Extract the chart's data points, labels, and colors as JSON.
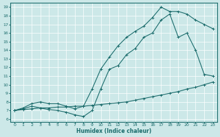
{
  "xlabel": "Humidex (Indice chaleur)",
  "xlim": [
    -0.5,
    23.5
  ],
  "ylim": [
    5.7,
    19.5
  ],
  "yticks": [
    6,
    7,
    8,
    9,
    10,
    11,
    12,
    13,
    14,
    15,
    16,
    17,
    18,
    19
  ],
  "xticks": [
    0,
    1,
    2,
    3,
    4,
    5,
    6,
    7,
    8,
    9,
    10,
    11,
    12,
    13,
    14,
    15,
    16,
    17,
    18,
    19,
    20,
    21,
    22,
    23
  ],
  "bg_color": "#cce8e8",
  "line_color": "#1a6b6b",
  "line1": {
    "x": [
      0,
      1,
      2,
      3,
      4,
      5,
      6,
      7,
      8,
      9,
      10,
      11,
      12,
      13,
      14,
      15,
      16,
      17,
      18,
      19,
      20,
      21,
      22,
      23
    ],
    "y": [
      7.0,
      7.1,
      7.2,
      7.3,
      7.3,
      7.4,
      7.4,
      7.5,
      7.5,
      7.6,
      7.7,
      7.8,
      7.9,
      8.0,
      8.2,
      8.4,
      8.6,
      8.8,
      9.0,
      9.2,
      9.5,
      9.7,
      10.0,
      10.3
    ]
  },
  "line2": {
    "x": [
      0,
      1,
      2,
      3,
      4,
      5,
      6,
      7,
      8,
      9,
      10,
      11,
      12,
      13,
      14,
      15,
      16,
      17,
      18,
      19,
      20,
      21,
      22,
      23
    ],
    "y": [
      7.0,
      7.2,
      7.5,
      7.3,
      7.1,
      7.0,
      6.8,
      6.5,
      6.3,
      7.0,
      9.5,
      11.8,
      12.2,
      13.5,
      14.2,
      15.5,
      16.0,
      17.5,
      18.2,
      15.5,
      16.0,
      14.0,
      11.2,
      11.0
    ]
  },
  "line3": {
    "x": [
      0,
      1,
      2,
      3,
      4,
      5,
      6,
      7,
      8,
      9,
      10,
      11,
      12,
      13,
      14,
      15,
      16,
      17,
      18,
      19,
      20,
      21,
      22,
      23
    ],
    "y": [
      7.0,
      7.3,
      7.8,
      8.0,
      7.8,
      7.8,
      7.5,
      7.2,
      7.5,
      9.5,
      11.8,
      13.2,
      14.5,
      15.5,
      16.2,
      16.8,
      17.8,
      19.0,
      18.5,
      18.5,
      18.2,
      17.5,
      17.0,
      16.5
    ]
  }
}
